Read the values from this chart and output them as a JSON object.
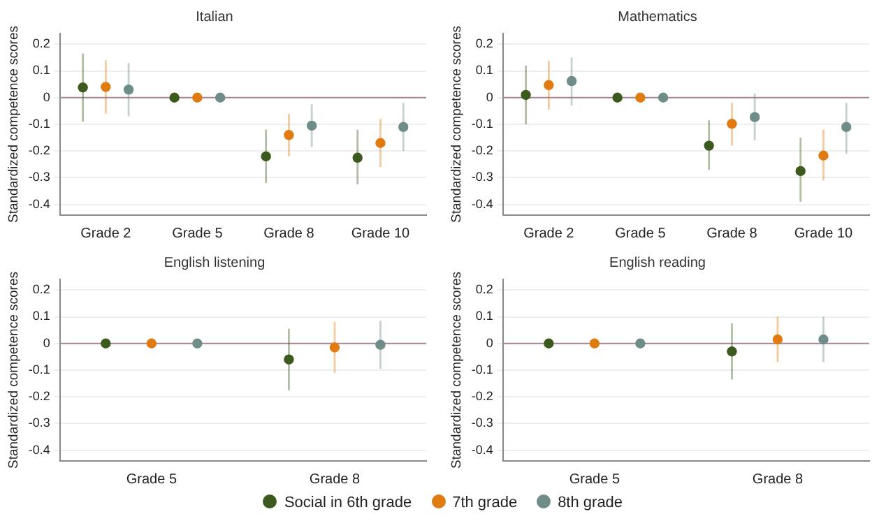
{
  "chart_data": [
    {
      "type": "scatter",
      "title": "Italian",
      "ylabel": "Standardized competence scores",
      "categories": [
        "Grade 2",
        "Grade 5",
        "Grade 8",
        "Grade 10"
      ],
      "ylim": [
        -0.44,
        0.24
      ],
      "yticks": [
        -0.4,
        -0.3,
        -0.2,
        -0.1,
        0,
        0.1,
        0.2
      ],
      "grid": "y",
      "marker": "circle",
      "ref_lines": [
        {
          "axis": "y",
          "value": 0,
          "color": "#a98595"
        }
      ],
      "series": [
        {
          "color": "#3d5a1e",
          "values": [
            0.038,
            0,
            -0.22,
            -0.225
          ],
          "errors": [
            [
              -0.09,
              0.165
            ],
            null,
            [
              -0.32,
              -0.12
            ],
            [
              -0.325,
              -0.12
            ]
          ]
        },
        {
          "color": "#e07b12",
          "values": [
            0.04,
            0,
            -0.14,
            -0.17
          ],
          "errors": [
            [
              -0.06,
              0.14
            ],
            null,
            [
              -0.22,
              -0.06
            ],
            [
              -0.26,
              -0.08
            ]
          ]
        },
        {
          "color": "#6e8c88",
          "values": [
            0.03,
            0,
            -0.105,
            -0.11
          ],
          "errors": [
            [
              -0.07,
              0.13
            ],
            null,
            [
              -0.185,
              -0.025
            ],
            [
              -0.2,
              -0.02
            ]
          ]
        }
      ]
    },
    {
      "type": "scatter",
      "title": "Mathematics",
      "ylabel": "Standardized competence scores",
      "categories": [
        "Grade 2",
        "Grade 5",
        "Grade 8",
        "Grade 10"
      ],
      "ylim": [
        -0.44,
        0.24
      ],
      "yticks": [
        -0.4,
        -0.3,
        -0.2,
        -0.1,
        0,
        0.1,
        0.2
      ],
      "grid": "y",
      "marker": "circle",
      "ref_lines": [
        {
          "axis": "y",
          "value": 0,
          "color": "#a98595"
        }
      ],
      "series": [
        {
          "color": "#3d5a1e",
          "values": [
            0.01,
            0,
            -0.18,
            -0.275
          ],
          "errors": [
            [
              -0.1,
              0.12
            ],
            null,
            [
              -0.27,
              -0.085
            ],
            [
              -0.39,
              -0.15
            ]
          ]
        },
        {
          "color": "#e07b12",
          "values": [
            0.047,
            0,
            -0.098,
            -0.217
          ],
          "errors": [
            [
              -0.045,
              0.138
            ],
            null,
            [
              -0.18,
              -0.02
            ],
            [
              -0.31,
              -0.12
            ]
          ]
        },
        {
          "color": "#6e8c88",
          "values": [
            0.062,
            0,
            -0.073,
            -0.11
          ],
          "errors": [
            [
              -0.03,
              0.15
            ],
            null,
            [
              -0.16,
              0.015
            ],
            [
              -0.21,
              -0.02
            ]
          ]
        }
      ]
    },
    {
      "type": "scatter",
      "title": "English listening",
      "ylabel": "Standardized competence scores",
      "categories": [
        "Grade 5",
        "Grade 8"
      ],
      "ylim": [
        -0.44,
        0.24
      ],
      "yticks": [
        -0.4,
        -0.3,
        -0.2,
        -0.1,
        0,
        0.1,
        0.2
      ],
      "grid": "y",
      "marker": "circle",
      "ref_lines": [
        {
          "axis": "y",
          "value": 0,
          "color": "#a98595"
        }
      ],
      "series": [
        {
          "color": "#3d5a1e",
          "values": [
            0,
            -0.06
          ],
          "errors": [
            null,
            [
              -0.175,
              0.055
            ]
          ]
        },
        {
          "color": "#e07b12",
          "values": [
            0,
            -0.015
          ],
          "errors": [
            null,
            [
              -0.11,
              0.08
            ]
          ]
        },
        {
          "color": "#6e8c88",
          "values": [
            0,
            -0.005
          ],
          "errors": [
            null,
            [
              -0.095,
              0.085
            ]
          ]
        }
      ]
    },
    {
      "type": "scatter",
      "title": "English reading",
      "ylabel": "Standardized competence scores",
      "categories": [
        "Grade 5",
        "Grade 8"
      ],
      "ylim": [
        -0.44,
        0.24
      ],
      "yticks": [
        -0.4,
        -0.3,
        -0.2,
        -0.1,
        0,
        0.1,
        0.2
      ],
      "grid": "y",
      "marker": "circle",
      "legend": "bottom",
      "ref_lines": [
        {
          "axis": "y",
          "value": 0,
          "color": "#a98595"
        }
      ],
      "series": [
        {
          "name": "Social in 6th grade",
          "color": "#3d5a1e",
          "values": [
            0,
            -0.03
          ],
          "errors": [
            null,
            [
              -0.135,
              0.075
            ]
          ]
        },
        {
          "name": "7th grade",
          "color": "#e07b12",
          "values": [
            0,
            0.015
          ],
          "errors": [
            null,
            [
              -0.07,
              0.1
            ]
          ]
        },
        {
          "name": "8th grade",
          "color": "#6e8c88",
          "values": [
            0,
            0.015
          ],
          "errors": [
            null,
            [
              -0.07,
              0.1
            ]
          ]
        }
      ]
    }
  ]
}
